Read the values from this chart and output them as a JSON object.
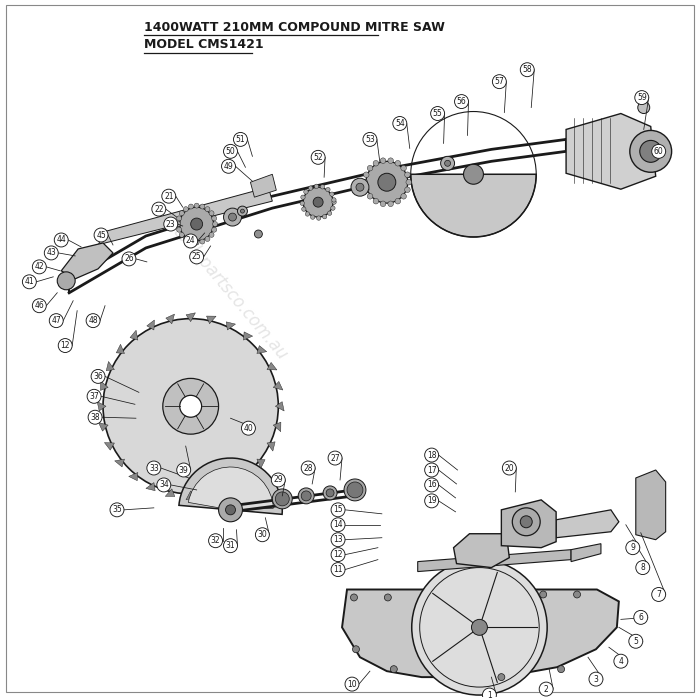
{
  "title_line1": "1400WATT 210MM COMPOUND MITRE SAW",
  "title_line2": "MODEL CMS1421",
  "bg_color": "#ffffff",
  "dc": "#1a1a1a",
  "watermark": "toolspartsco.com.au"
}
